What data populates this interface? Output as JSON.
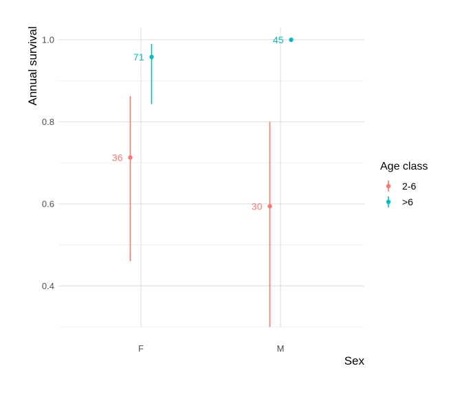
{
  "chart_data": {
    "type": "scatter",
    "xlabel": "Sex",
    "ylabel": "Annual survival",
    "categories": [
      "F",
      "M"
    ],
    "ylim": [
      0.3,
      1.03
    ],
    "yticks": [
      0.4,
      0.6,
      0.8,
      1.0
    ],
    "ytick_labels": [
      "0.4",
      "0.6",
      "0.8",
      "1.0"
    ],
    "grid": true,
    "legend": {
      "title": "Age class",
      "position": "right"
    },
    "series": [
      {
        "name": "2-6",
        "color": "#F8766D",
        "points": [
          {
            "x": "F",
            "y": 0.713,
            "lower": 0.46,
            "upper": 0.863,
            "label": "36"
          },
          {
            "x": "M",
            "y": 0.594,
            "lower": 0.3,
            "upper": 0.8,
            "label": "30"
          }
        ]
      },
      {
        "name": ">6",
        "color": "#00BFC4",
        "points": [
          {
            "x": "F",
            "y": 0.958,
            "lower": 0.843,
            "upper": 0.99,
            "label": "71"
          },
          {
            "x": "M",
            "y": 1.0,
            "lower": 1.0,
            "upper": 1.0,
            "label": "45"
          }
        ]
      }
    ]
  }
}
